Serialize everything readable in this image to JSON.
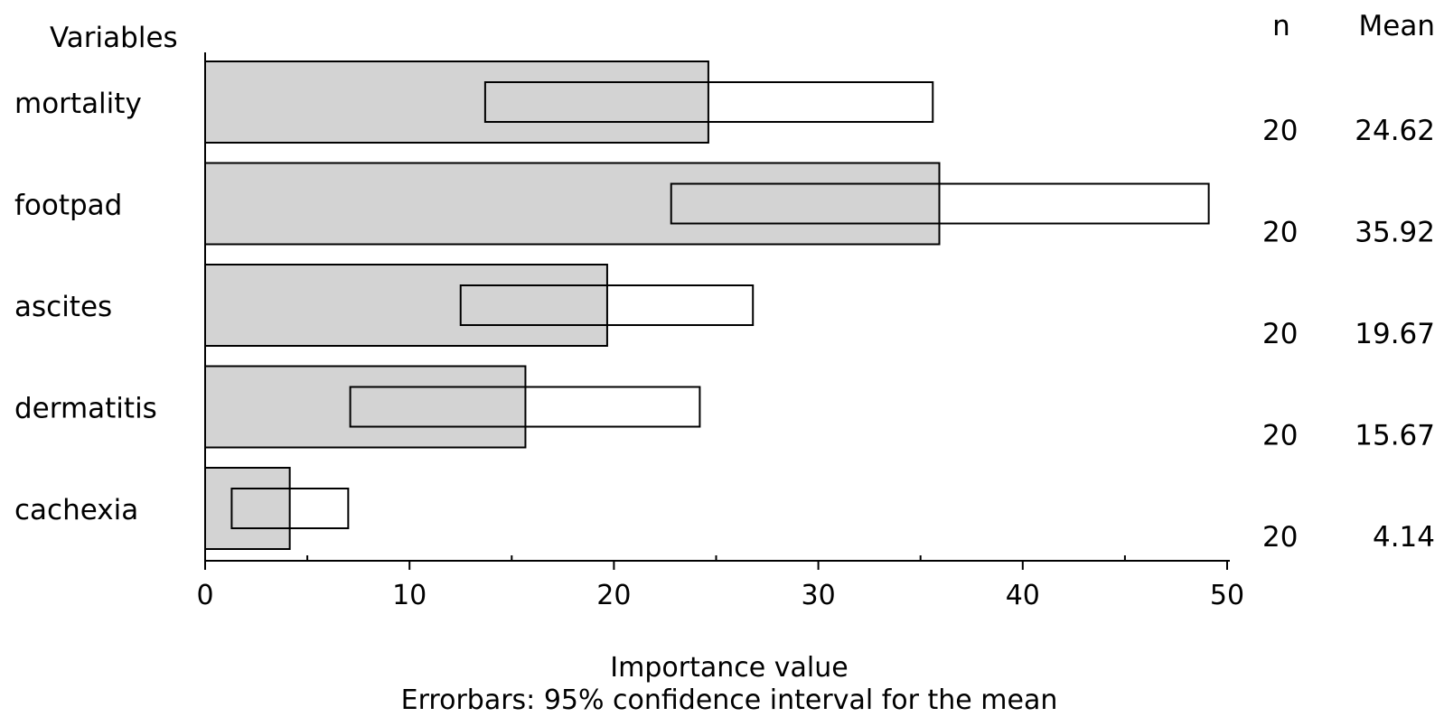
{
  "chart_data": {
    "type": "bar",
    "orientation": "horizontal",
    "categories": [
      "mortality",
      "footpad",
      "ascites",
      "dermatitis",
      "cachexia"
    ],
    "series": [
      {
        "values": [
          24.62,
          35.92,
          19.67,
          15.67,
          4.14
        ]
      }
    ],
    "ci_lower": [
      13.7,
      22.8,
      12.5,
      7.1,
      1.3
    ],
    "ci_upper": [
      35.6,
      49.1,
      26.8,
      24.2,
      7.0
    ],
    "n": [
      20,
      20,
      20,
      20,
      20
    ],
    "mean_labels": [
      "24.62",
      "35.92",
      "19.67",
      "15.67",
      "4.14"
    ],
    "n_labels": [
      "20",
      "20",
      "20",
      "20",
      "20"
    ],
    "xlim": [
      0,
      50
    ],
    "xticks": [
      0,
      10,
      20,
      30,
      40,
      50
    ],
    "xlabel": "Importance value",
    "subtitle": "Errorbars: 95% confidence interval for the mean",
    "category_axis_label": "Variables",
    "n_header": "n",
    "mean_header": "Mean",
    "grid": false,
    "colors": {
      "bar_fill": "#d3d3d3",
      "ci_fill": "#ffffff",
      "stroke": "#000000"
    }
  }
}
